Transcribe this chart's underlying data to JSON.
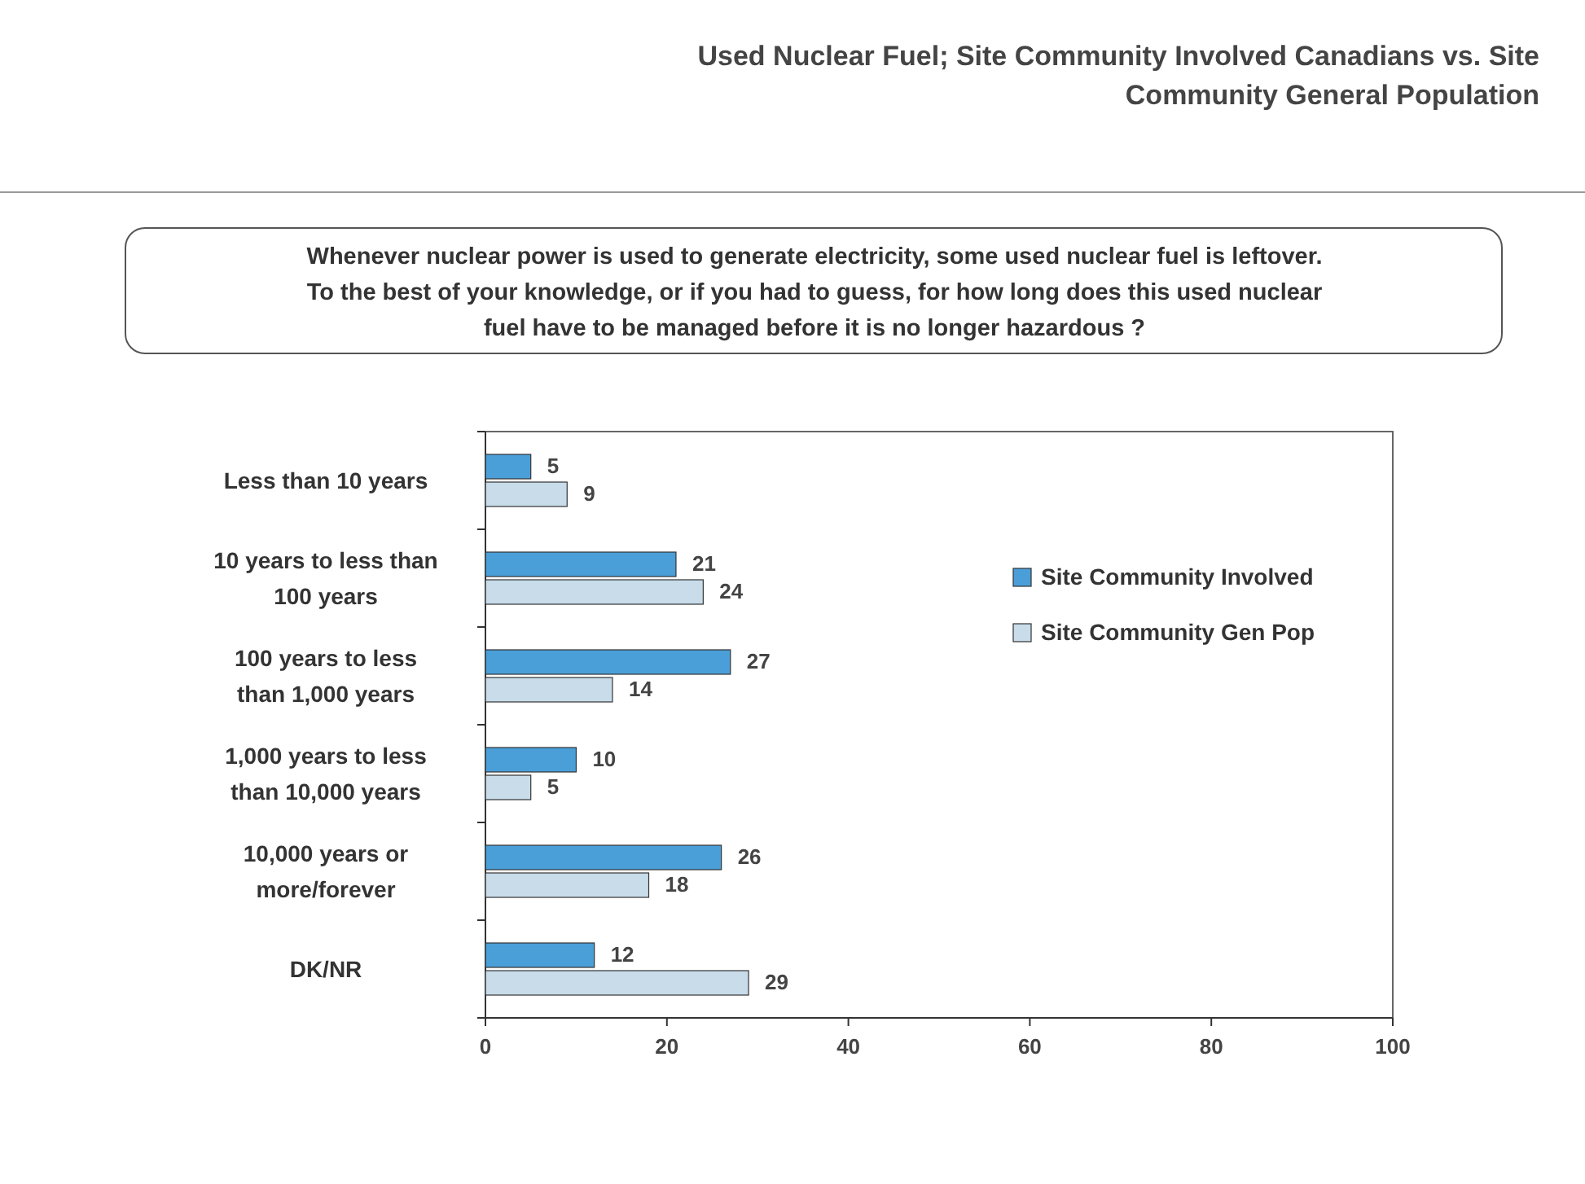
{
  "chart_data": {
    "type": "bar",
    "orientation": "horizontal",
    "title": "Used Nuclear Fuel; Site Community Involved Canadians vs. Site Community General Population",
    "subtitle": "Whenever nuclear power is used to generate electricity, some used nuclear fuel is leftover. To the best of your knowledge, or if you had to guess, for how long does this used nuclear fuel have to be managed before it is no longer hazardous ?",
    "categories": [
      "Less than 10 years",
      "10 years to less than 100 years",
      "100 years to less than 1,000 years",
      "1,000 years to less than 10,000 years",
      "10,000 years or more/forever",
      "DK/NR"
    ],
    "series": [
      {
        "name": "Site Community Involved",
        "color": "#4a9fd8",
        "values": [
          5,
          21,
          27,
          10,
          26,
          12
        ]
      },
      {
        "name": "Site Community Gen Pop",
        "color": "#c8dcea",
        "values": [
          9,
          24,
          14,
          5,
          18,
          29
        ]
      }
    ],
    "xlim": [
      0,
      100
    ],
    "xticks": [
      0,
      20,
      40,
      60,
      80,
      100
    ],
    "data_labels": true,
    "legend": "right"
  }
}
